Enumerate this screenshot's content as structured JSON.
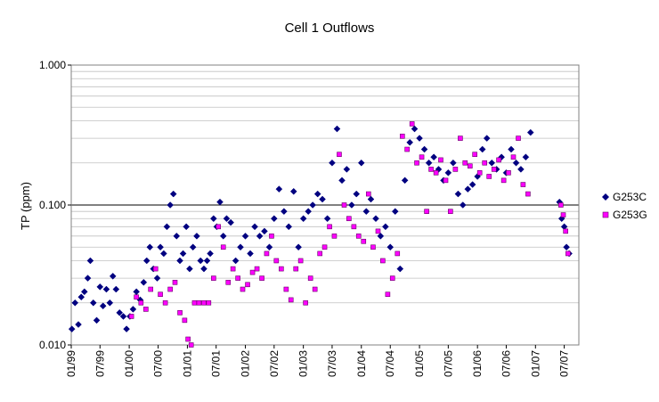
{
  "colors": {
    "background": "#ffffff",
    "grid_minor": "#c0c0c0",
    "grid_major": "#000000",
    "G253C": "#000080",
    "G253G": "#ff00ff"
  },
  "chart_data": {
    "type": "scatter",
    "title": "Cell 1 Outflows",
    "xlabel": "",
    "ylabel": "TP (ppm)",
    "yscale": "log",
    "ylim": [
      0.01,
      1.0
    ],
    "xlim": [
      "1999-01-01",
      "2007-10-01"
    ],
    "y_ticks": [
      "1.000",
      "0.100",
      "0.010"
    ],
    "x_ticks": [
      "01/99",
      "07/99",
      "01/00",
      "07/00",
      "01/01",
      "07/01",
      "01/02",
      "07/02",
      "01/03",
      "07/03",
      "01/04",
      "07/04",
      "01/05",
      "07/05",
      "01/06",
      "07/06",
      "01/07",
      "07/07"
    ],
    "grid": "horizontal minor gridlines at each decade multiple; major line at 0.100",
    "legend_position": "right",
    "series": [
      {
        "name": "G253C",
        "marker": "diamond",
        "color": "#000080",
        "x": [
          "1999-01-05",
          "1999-01-25",
          "1999-02-15",
          "1999-03-05",
          "1999-03-25",
          "1999-04-15",
          "1999-05-01",
          "1999-05-20",
          "1999-06-10",
          "1999-07-01",
          "1999-07-20",
          "1999-08-10",
          "1999-09-01",
          "1999-09-20",
          "1999-10-10",
          "1999-11-01",
          "1999-11-25",
          "1999-12-15",
          "2000-01-05",
          "2000-01-25",
          "2000-02-15",
          "2000-03-10",
          "2000-04-01",
          "2000-04-20",
          "2000-05-10",
          "2000-06-01",
          "2000-06-25",
          "2000-07-15",
          "2000-08-05",
          "2000-08-25",
          "2000-09-15",
          "2000-10-05",
          "2000-10-25",
          "2000-11-15",
          "2000-12-05",
          "2000-12-25",
          "2001-01-15",
          "2001-02-05",
          "2001-03-01",
          "2001-03-25",
          "2001-04-15",
          "2001-05-05",
          "2001-05-25",
          "2001-06-15",
          "2001-07-05",
          "2001-07-25",
          "2001-08-15",
          "2001-09-05",
          "2001-10-01",
          "2001-11-01",
          "2001-12-01",
          "2002-01-01",
          "2002-02-01",
          "2002-03-01",
          "2002-04-01",
          "2002-05-01",
          "2002-06-01",
          "2002-07-01",
          "2002-08-01",
          "2002-09-01",
          "2002-10-01",
          "2002-11-01",
          "2002-12-01",
          "2003-01-01",
          "2003-02-01",
          "2003-03-01",
          "2003-04-01",
          "2003-05-01",
          "2003-06-01",
          "2003-07-01",
          "2003-08-01",
          "2003-09-01",
          "2003-10-01",
          "2003-11-01",
          "2003-12-01",
          "2004-01-01",
          "2004-02-01",
          "2004-03-01",
          "2004-04-01",
          "2004-05-01",
          "2004-06-01",
          "2004-07-01",
          "2004-08-01",
          "2004-09-01",
          "2004-10-01",
          "2004-11-01",
          "2004-12-01",
          "2005-01-01",
          "2005-02-01",
          "2005-03-01",
          "2005-04-01",
          "2005-05-01",
          "2005-06-01",
          "2005-07-01",
          "2005-08-01",
          "2005-09-01",
          "2005-10-01",
          "2005-11-01",
          "2005-12-01",
          "2006-01-01",
          "2006-02-01",
          "2006-03-01",
          "2006-04-01",
          "2006-05-01",
          "2006-06-01",
          "2006-07-01",
          "2006-08-01",
          "2006-09-01",
          "2006-10-01",
          "2006-11-01",
          "2006-12-01",
          "2007-06-01",
          "2007-06-15",
          "2007-07-01",
          "2007-07-15",
          "2007-08-01"
        ],
        "y": [
          0.013,
          0.02,
          0.014,
          0.022,
          0.024,
          0.03,
          0.04,
          0.02,
          0.015,
          0.026,
          0.019,
          0.025,
          0.02,
          0.031,
          0.025,
          0.017,
          0.016,
          0.013,
          0.016,
          0.018,
          0.024,
          0.021,
          0.028,
          0.04,
          0.05,
          0.035,
          0.03,
          0.05,
          0.045,
          0.07,
          0.1,
          0.12,
          0.06,
          0.04,
          0.045,
          0.07,
          0.035,
          0.05,
          0.06,
          0.04,
          0.035,
          0.04,
          0.045,
          0.08,
          0.07,
          0.105,
          0.06,
          0.08,
          0.075,
          0.04,
          0.05,
          0.06,
          0.045,
          0.07,
          0.06,
          0.065,
          0.05,
          0.08,
          0.13,
          0.09,
          0.07,
          0.125,
          0.05,
          0.08,
          0.09,
          0.1,
          0.12,
          0.11,
          0.08,
          0.2,
          0.35,
          0.15,
          0.18,
          0.1,
          0.12,
          0.2,
          0.09,
          0.11,
          0.08,
          0.06,
          0.07,
          0.05,
          0.09,
          0.035,
          0.15,
          0.28,
          0.35,
          0.3,
          0.25,
          0.2,
          0.22,
          0.18,
          0.15,
          0.17,
          0.2,
          0.12,
          0.1,
          0.13,
          0.14,
          0.16,
          0.25,
          0.3,
          0.2,
          0.18,
          0.22,
          0.17,
          0.25,
          0.2,
          0.18,
          0.22,
          0.33,
          0.105,
          0.08,
          0.07,
          0.05,
          0.045
        ]
      },
      {
        "name": "G253G",
        "marker": "square",
        "color": "#ff00ff",
        "x": [
          "2000-01-15",
          "2000-02-15",
          "2000-03-15",
          "2000-04-15",
          "2000-05-15",
          "2000-06-15",
          "2000-07-15",
          "2000-08-15",
          "2000-09-15",
          "2000-10-15",
          "2000-11-15",
          "2000-12-15",
          "2001-01-05",
          "2001-01-25",
          "2001-02-15",
          "2001-03-15",
          "2001-04-15",
          "2001-05-15",
          "2001-06-15",
          "2001-07-15",
          "2001-08-15",
          "2001-09-15",
          "2001-10-15",
          "2001-11-15",
          "2001-12-15",
          "2002-01-15",
          "2002-02-15",
          "2002-03-15",
          "2002-04-15",
          "2002-05-15",
          "2002-06-15",
          "2002-07-15",
          "2002-08-15",
          "2002-09-15",
          "2002-10-15",
          "2002-11-15",
          "2002-12-15",
          "2003-01-15",
          "2003-02-15",
          "2003-03-15",
          "2003-04-15",
          "2003-05-15",
          "2003-06-15",
          "2003-07-15",
          "2003-08-15",
          "2003-09-15",
          "2003-10-15",
          "2003-11-15",
          "2003-12-15",
          "2004-01-15",
          "2004-02-15",
          "2004-03-15",
          "2004-04-15",
          "2004-05-15",
          "2004-06-15",
          "2004-07-15",
          "2004-08-15",
          "2004-09-15",
          "2004-10-15",
          "2004-11-15",
          "2004-12-15",
          "2005-01-15",
          "2005-02-15",
          "2005-03-15",
          "2005-04-15",
          "2005-05-15",
          "2005-06-15",
          "2005-07-15",
          "2005-08-15",
          "2005-09-15",
          "2005-10-15",
          "2005-11-15",
          "2005-12-15",
          "2006-01-15",
          "2006-02-15",
          "2006-03-15",
          "2006-04-15",
          "2006-05-15",
          "2006-06-15",
          "2006-07-15",
          "2006-08-15",
          "2006-09-15",
          "2006-10-15",
          "2006-11-15",
          "2007-06-10",
          "2007-06-25",
          "2007-07-10",
          "2007-07-25"
        ],
        "y": [
          0.016,
          0.022,
          0.02,
          0.018,
          0.025,
          0.035,
          0.023,
          0.02,
          0.025,
          0.028,
          0.017,
          0.015,
          0.011,
          0.01,
          0.02,
          0.02,
          0.02,
          0.02,
          0.03,
          0.07,
          0.05,
          0.028,
          0.035,
          0.03,
          0.025,
          0.027,
          0.033,
          0.035,
          0.03,
          0.045,
          0.06,
          0.04,
          0.035,
          0.025,
          0.021,
          0.035,
          0.04,
          0.02,
          0.03,
          0.025,
          0.045,
          0.05,
          0.07,
          0.06,
          0.23,
          0.1,
          0.08,
          0.07,
          0.06,
          0.055,
          0.12,
          0.05,
          0.065,
          0.04,
          0.023,
          0.03,
          0.045,
          0.31,
          0.25,
          0.38,
          0.2,
          0.22,
          0.09,
          0.18,
          0.17,
          0.21,
          0.15,
          0.09,
          0.18,
          0.3,
          0.2,
          0.19,
          0.23,
          0.17,
          0.2,
          0.16,
          0.18,
          0.21,
          0.15,
          0.17,
          0.22,
          0.3,
          0.14,
          0.12,
          0.1,
          0.085,
          0.065,
          0.045
        ]
      }
    ]
  }
}
